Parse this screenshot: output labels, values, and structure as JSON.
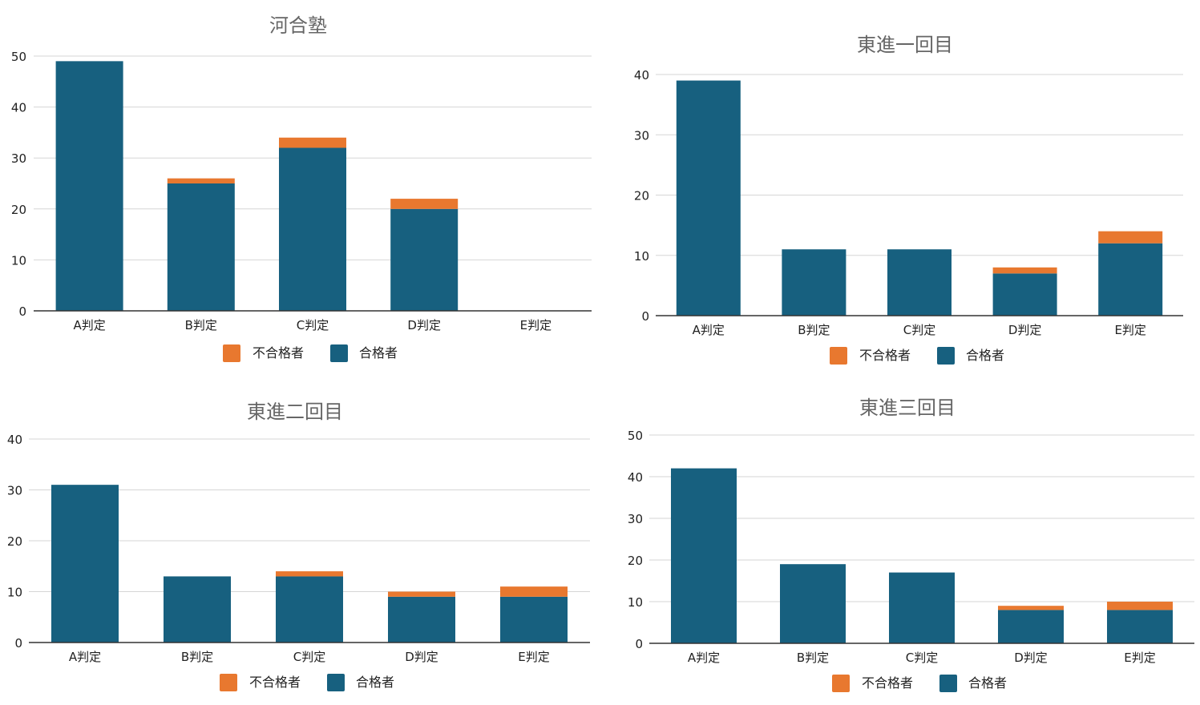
{
  "colors": {
    "pass": "#17607f",
    "fail": "#e8782f",
    "grid": "#d6d6d6",
    "axis": "#333333",
    "text": "#222222",
    "title": "#666666"
  },
  "legend": {
    "fail_label": "不合格者",
    "pass_label": "合格者"
  },
  "chart_data": [
    {
      "type": "bar",
      "stacked": true,
      "title": "河合塾",
      "categories": [
        "A判定",
        "B判定",
        "C判定",
        "D判定",
        "E判定"
      ],
      "series": [
        {
          "name": "合格者",
          "values": [
            49,
            25,
            32,
            20,
            0
          ]
        },
        {
          "name": "不合格者",
          "values": [
            0,
            1,
            2,
            2,
            0
          ]
        }
      ],
      "yticks": [
        0,
        10,
        20,
        30,
        40,
        50
      ],
      "ylim": [
        0,
        50
      ],
      "grid": true,
      "legend_position": "bottom"
    },
    {
      "type": "bar",
      "stacked": true,
      "title": "東進一回目",
      "categories": [
        "A判定",
        "B判定",
        "C判定",
        "D判定",
        "E判定"
      ],
      "series": [
        {
          "name": "合格者",
          "values": [
            39,
            11,
            11,
            7,
            12
          ]
        },
        {
          "name": "不合格者",
          "values": [
            0,
            0,
            0,
            1,
            2
          ]
        }
      ],
      "yticks": [
        0,
        10,
        20,
        30,
        40
      ],
      "ylim": [
        0,
        40
      ],
      "grid": true,
      "legend_position": "bottom"
    },
    {
      "type": "bar",
      "stacked": true,
      "title": "東進二回目",
      "categories": [
        "A判定",
        "B判定",
        "C判定",
        "D判定",
        "E判定"
      ],
      "series": [
        {
          "name": "合格者",
          "values": [
            31,
            13,
            13,
            9,
            9
          ]
        },
        {
          "name": "不合格者",
          "values": [
            0,
            0,
            1,
            1,
            2
          ]
        }
      ],
      "yticks": [
        0,
        10,
        20,
        30,
        40
      ],
      "ylim": [
        0,
        40
      ],
      "grid": true,
      "legend_position": "bottom"
    },
    {
      "type": "bar",
      "stacked": true,
      "title": "東進三回目",
      "categories": [
        "A判定",
        "B判定",
        "C判定",
        "D判定",
        "E判定"
      ],
      "series": [
        {
          "name": "合格者",
          "values": [
            42,
            19,
            17,
            8,
            8
          ]
        },
        {
          "name": "不合格者",
          "values": [
            0,
            0,
            0,
            1,
            2
          ]
        }
      ],
      "yticks": [
        0,
        10,
        20,
        30,
        40,
        50
      ],
      "ylim": [
        0,
        50
      ],
      "grid": true,
      "legend_position": "bottom"
    }
  ]
}
